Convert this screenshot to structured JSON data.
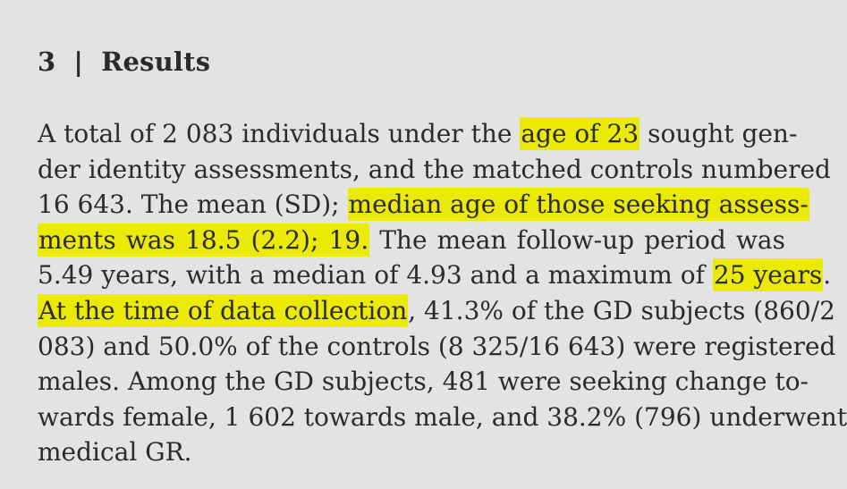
{
  "section": {
    "number": "3",
    "separator": "|",
    "title": "Results"
  },
  "paragraph": {
    "lines": [
      {
        "segments": [
          {
            "text": "A total of 2 083 individuals under the ",
            "highlight": false
          },
          {
            "text": "age of 23",
            "highlight": true
          },
          {
            "text": " sought gen-",
            "highlight": false
          }
        ]
      },
      {
        "segments": [
          {
            "text": "der identity assessments, and the matched controls numbered",
            "highlight": false
          }
        ]
      },
      {
        "segments": [
          {
            "text": "16 643. The mean (SD); ",
            "highlight": false
          },
          {
            "text": "median age of those seeking assess-",
            "highlight": true
          }
        ]
      },
      {
        "segments": [
          {
            "text": "ments was 18.5 (2.2); 19.",
            "highlight": true
          },
          {
            "text": " The mean follow-up period was",
            "highlight": false
          }
        ]
      },
      {
        "segments": [
          {
            "text": "5.49 years, with a median of 4.93 and a maximum of ",
            "highlight": false
          },
          {
            "text": "25 years",
            "highlight": true
          },
          {
            "text": ".",
            "highlight": false
          }
        ]
      },
      {
        "segments": [
          {
            "text": "At the time of data collection",
            "highlight": true
          },
          {
            "text": ", 41.3% of the GD subjects (860/2",
            "highlight": false
          }
        ]
      },
      {
        "segments": [
          {
            "text": "083) and 50.0% of the controls (8 325/16 643) were registered",
            "highlight": false
          }
        ]
      },
      {
        "segments": [
          {
            "text": "males. Among the GD subjects, 481 were seeking change to-",
            "highlight": false
          }
        ]
      },
      {
        "segments": [
          {
            "text": "wards female, 1 602 towards male, and 38.2% (796) underwent",
            "highlight": false
          }
        ]
      },
      {
        "segments": [
          {
            "text": "medical GR.",
            "highlight": false
          }
        ]
      }
    ]
  },
  "colors": {
    "background": "#e3e3e3",
    "text": "#2b2b2b",
    "highlight": "#eaea05"
  }
}
